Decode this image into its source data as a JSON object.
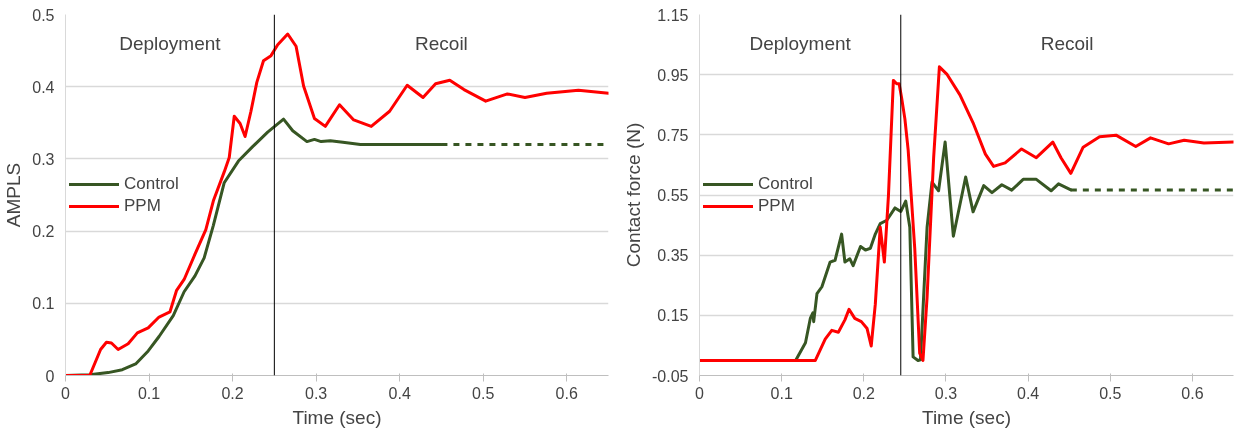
{
  "chart_data": [
    {
      "type": "line",
      "xlabel": "Time (sec)",
      "ylabel": "AMPLS",
      "xlim": [
        0,
        0.65
      ],
      "ylim": [
        0,
        0.5
      ],
      "xticks": [
        0,
        0.1,
        0.2,
        0.3,
        0.4,
        0.5,
        0.6
      ],
      "yticks": [
        0,
        0.1,
        0.2,
        0.3,
        0.4,
        0.5
      ],
      "grid": "y",
      "legend": "left",
      "line_style": "solid",
      "annotations": [
        "Deployment",
        "Recoil"
      ],
      "ref_lines": [
        {
          "axis": "x",
          "value": 0.25,
          "color": "#000000"
        }
      ],
      "series": [
        {
          "name": "Control",
          "color": "#375623",
          "x": [
            0,
            0.029,
            0.051,
            0.068,
            0.084,
            0.099,
            0.112,
            0.129,
            0.142,
            0.155,
            0.166,
            0.177,
            0.19,
            0.207,
            0.224,
            0.242,
            0.261,
            0.272,
            0.289,
            0.298,
            0.306,
            0.317,
            0.332,
            0.353,
            0.375,
            0.45
          ],
          "values": [
            0,
            0.001,
            0.004,
            0.008,
            0.016,
            0.034,
            0.054,
            0.083,
            0.116,
            0.138,
            0.163,
            0.208,
            0.267,
            0.297,
            0.317,
            0.337,
            0.355,
            0.339,
            0.324,
            0.327,
            0.324,
            0.325,
            0.323,
            0.32,
            0.32,
            0.32
          ]
        },
        {
          "name": "PPM",
          "color": "#ff0000",
          "x": [
            0,
            0.029,
            0.042,
            0.049,
            0.055,
            0.063,
            0.075,
            0.086,
            0.099,
            0.112,
            0.125,
            0.133,
            0.142,
            0.155,
            0.168,
            0.177,
            0.19,
            0.196,
            0.202,
            0.209,
            0.215,
            0.222,
            0.229,
            0.237,
            0.246,
            0.254,
            0.266,
            0.276,
            0.285,
            0.298,
            0.311,
            0.328,
            0.345,
            0.366,
            0.388,
            0.409,
            0.428,
            0.443,
            0.46,
            0.477,
            0.503,
            0.529,
            0.55,
            0.576,
            0.614,
            0.65
          ],
          "values": [
            0,
            0,
            0.036,
            0.046,
            0.045,
            0.036,
            0.044,
            0.059,
            0.066,
            0.081,
            0.088,
            0.118,
            0.133,
            0.168,
            0.202,
            0.242,
            0.282,
            0.302,
            0.359,
            0.349,
            0.331,
            0.366,
            0.406,
            0.436,
            0.443,
            0.458,
            0.473,
            0.456,
            0.401,
            0.356,
            0.345,
            0.375,
            0.354,
            0.345,
            0.366,
            0.402,
            0.385,
            0.404,
            0.409,
            0.396,
            0.38,
            0.39,
            0.385,
            0.391,
            0.395,
            0.391
          ]
        },
        {
          "color": "#375623",
          "line_style": "dashed",
          "x": [
            0.45,
            0.65
          ],
          "values": [
            0.32,
            0.32
          ]
        }
      ]
    },
    {
      "type": "line",
      "xlabel": "Time (sec)",
      "ylabel": "Contact force (N)",
      "xlim": [
        0,
        0.65
      ],
      "ylim": [
        -0.05,
        1.15
      ],
      "xticks": [
        0,
        0.1,
        0.2,
        0.3,
        0.4,
        0.5,
        0.6
      ],
      "yticks": [
        -0.05,
        0.15,
        0.35,
        0.55,
        0.75,
        0.95,
        1.15
      ],
      "grid": "y",
      "legend": "left",
      "line_style": "solid",
      "annotations": [
        "Deployment",
        "Recoil"
      ],
      "ref_lines": [
        {
          "axis": "x",
          "value": 0.245,
          "color": "#000000"
        }
      ],
      "series": [
        {
          "name": "Control",
          "color": "#375623",
          "x": [
            0,
            0.117,
            0.129,
            0.135,
            0.138,
            0.139,
            0.143,
            0.149,
            0.159,
            0.165,
            0.173,
            0.177,
            0.183,
            0.187,
            0.196,
            0.202,
            0.208,
            0.214,
            0.22,
            0.228,
            0.238,
            0.245,
            0.251,
            0.256,
            0.26,
            0.266,
            0.269,
            0.277,
            0.283,
            0.291,
            0.299,
            0.309,
            0.324,
            0.333,
            0.346,
            0.356,
            0.368,
            0.38,
            0.394,
            0.41,
            0.428,
            0.437,
            0.452
          ],
          "values": [
            0,
            0,
            0.059,
            0.141,
            0.158,
            0.129,
            0.222,
            0.245,
            0.327,
            0.333,
            0.42,
            0.327,
            0.338,
            0.315,
            0.379,
            0.367,
            0.373,
            0.42,
            0.455,
            0.466,
            0.507,
            0.495,
            0.53,
            0.443,
            0.012,
            0,
            0.002,
            0.442,
            0.593,
            0.564,
            0.726,
            0.413,
            0.61,
            0.494,
            0.581,
            0.558,
            0.584,
            0.566,
            0.602,
            0.602,
            0.564,
            0.587,
            0.567
          ]
        },
        {
          "name": "PPM",
          "color": "#ff0000",
          "x": [
            0,
            0.141,
            0.153,
            0.161,
            0.169,
            0.177,
            0.182,
            0.189,
            0.197,
            0.204,
            0.209,
            0.214,
            0.22,
            0.225,
            0.23,
            0.236,
            0.24,
            0.243,
            0.246,
            0.25,
            0.254,
            0.262,
            0.268,
            0.272,
            0.277,
            0.285,
            0.292,
            0.301,
            0.317,
            0.333,
            0.348,
            0.358,
            0.372,
            0.392,
            0.41,
            0.43,
            0.44,
            0.452,
            0.467,
            0.487,
            0.507,
            0.531,
            0.549,
            0.571,
            0.59,
            0.614,
            0.65
          ],
          "values": [
            0,
            0,
            0.071,
            0.1,
            0.094,
            0.135,
            0.17,
            0.14,
            0.129,
            0.106,
            0.048,
            0.187,
            0.443,
            0.327,
            0.548,
            0.931,
            0.92,
            0.92,
            0.873,
            0.803,
            0.699,
            0.373,
            0.024,
            0,
            0.21,
            0.674,
            0.976,
            0.952,
            0.883,
            0.79,
            0.686,
            0.645,
            0.657,
            0.703,
            0.674,
            0.726,
            0.674,
            0.622,
            0.709,
            0.744,
            0.749,
            0.711,
            0.74,
            0.72,
            0.732,
            0.723,
            0.726
          ]
        },
        {
          "color": "#375623",
          "line_style": "dashed",
          "x": [
            0.452,
            0.65
          ],
          "values": [
            0.567,
            0.567
          ]
        }
      ]
    }
  ]
}
